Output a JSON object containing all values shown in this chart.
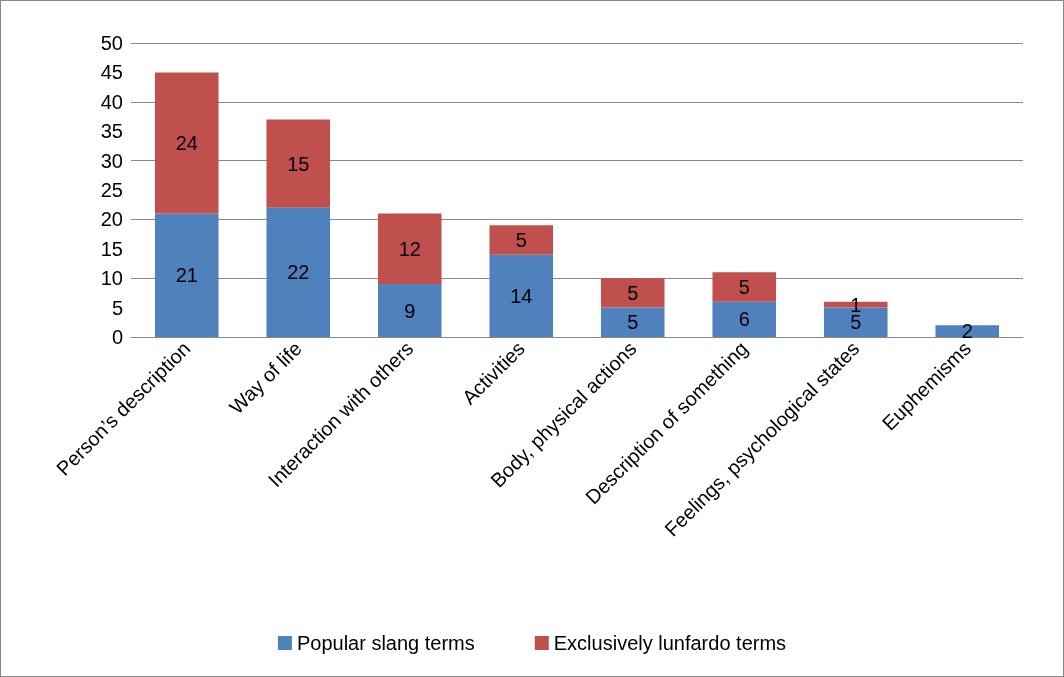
{
  "chart_data": {
    "type": "bar",
    "stacked": true,
    "categories": [
      "Person’s description",
      "Way of life",
      "Interaction with others",
      "Activities",
      "Body, physical actions",
      "Description of something",
      "Feelings, psychological states",
      "Euphemisms"
    ],
    "series": [
      {
        "name": "Popular slang terms",
        "color": "#4f81bd",
        "values": [
          21,
          22,
          9,
          14,
          5,
          6,
          5,
          2
        ],
        "value_labels": [
          "21",
          "22",
          "9",
          "14",
          "5",
          "6",
          "5",
          "2"
        ]
      },
      {
        "name": "Exclusively lunfardo terms",
        "color": "#c0504d",
        "values": [
          24,
          15,
          12,
          5,
          5,
          5,
          1,
          0
        ],
        "value_labels": [
          "24",
          "15",
          "12",
          "5",
          "5",
          "5",
          "1",
          null
        ]
      }
    ],
    "ylim": [
      0,
      50
    ],
    "yticks": [
      0,
      5,
      10,
      15,
      20,
      25,
      30,
      35,
      40,
      45,
      50
    ],
    "grid": "y",
    "legend": "bottom"
  }
}
